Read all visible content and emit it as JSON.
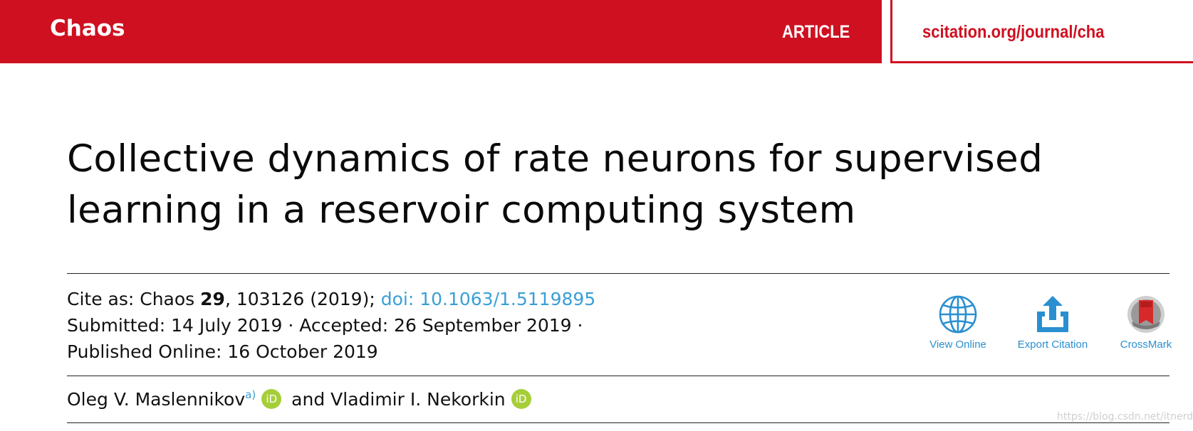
{
  "header": {
    "journal": "Chaos",
    "type": "ARTICLE",
    "url": "scitation.org/journal/cha",
    "brand_color": "#cf1020"
  },
  "title_lines": [
    "Collective dynamics of rate neurons for supervised",
    "learning in a reservoir computing system"
  ],
  "citation": {
    "cite_prefix": "Cite as: Chaos ",
    "volume": "29",
    "cite_rest": ", 103126 (2019); ",
    "doi": "doi: 10.1063/1.5119895",
    "submitted": "Submitted: 14 July 2019 · Accepted: 26 September 2019 ·",
    "published": "Published Online: 16 October 2019"
  },
  "actions": [
    {
      "label": "View Online",
      "icon": "globe-icon"
    },
    {
      "label": "Export Citation",
      "icon": "export-icon"
    },
    {
      "label": "CrossMark",
      "icon": "crossmark-icon"
    }
  ],
  "authors": {
    "author1": "Oleg V. Maslennikov",
    "author1_note": "a)",
    "orcid_label": "iD",
    "connector": " and ",
    "author2": "Vladimir I. Nekorkin"
  },
  "watermark": "https://blog.csdn.net/itnerd",
  "colors": {
    "link": "#3a9fd6",
    "orcid": "#a6ce39"
  }
}
